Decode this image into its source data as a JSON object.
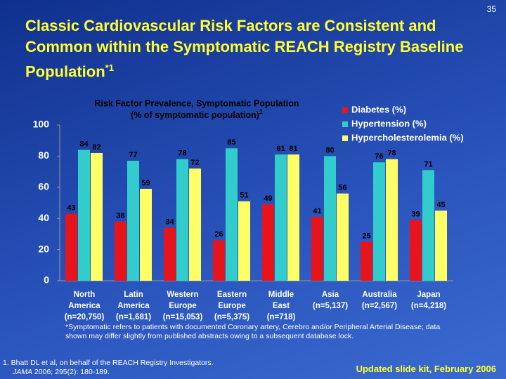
{
  "page_number": "35",
  "title": "Classic Cardiovascular Risk Factors are Consistent and Common within the Symptomatic REACH Registry Baseline Population",
  "title_superscript": "*1",
  "chart_data": {
    "type": "bar",
    "title": "Risk Factor Prevalence, Symptomatic Population",
    "subtitle": "(% of symptomatic population)",
    "subtitle_superscript": "1",
    "categories": [
      "North America",
      "Latin America",
      "Western Europe",
      "Eastern Europe",
      "Middle East",
      "Asia",
      "Australia",
      "Japan"
    ],
    "sample_sizes": [
      "(n=20,750)",
      "(n=1,681)",
      "(n=15,053)",
      "(n=5,375)",
      "(n=718)",
      "(n=5,137)",
      "(n=2,567)",
      "(n=4,218)"
    ],
    "series": [
      {
        "name": "Diabetes (%)",
        "color": "#e8141c",
        "values": [
          43,
          38,
          34,
          26,
          49,
          41,
          25,
          39
        ]
      },
      {
        "name": "Hypertension (%)",
        "color": "#33cccc",
        "values": [
          84,
          77,
          78,
          85,
          81,
          80,
          76,
          71
        ]
      },
      {
        "name": "Hypercholesterolemia (%)",
        "color": "#ffff66",
        "values": [
          82,
          59,
          72,
          51,
          81,
          56,
          78,
          45
        ]
      }
    ],
    "ylim": [
      0,
      100
    ],
    "yticks": [
      0,
      20,
      40,
      60,
      80,
      100
    ]
  },
  "footnote": "*Symptomatic refers to patients with documented Coronary artery, Cerebro and/or Peripheral Arterial Disease; data shown may differ slightly from published abstracts owing to a subsequent database lock.",
  "reference": {
    "text": "1. Bhatt DL et al, on behalf of the REACH Registry Investigators.",
    "journal": "JAMA",
    "citation": " 2006; 295(2): 180-189."
  },
  "footer": "Updated slide kit, February 2006"
}
